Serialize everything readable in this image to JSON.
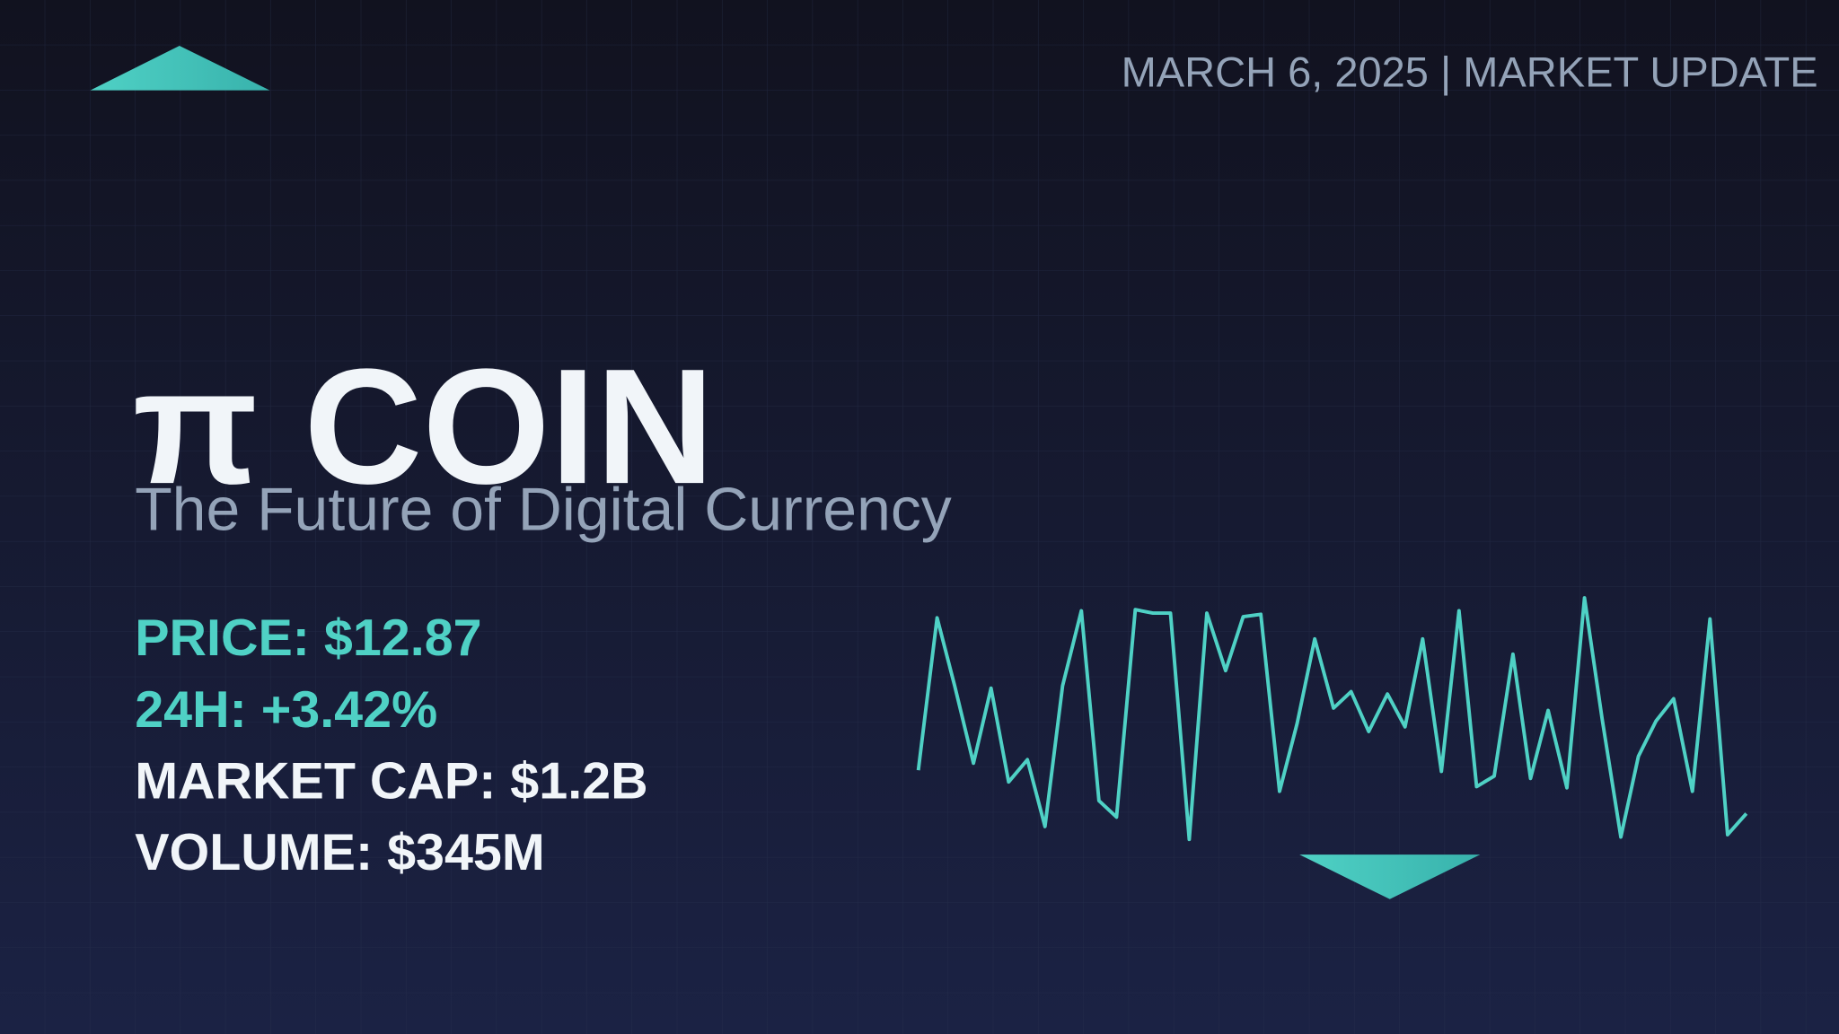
{
  "header": {
    "date_line": "MARCH 6, 2025 | MARKET UPDATE"
  },
  "hero": {
    "title": "π COIN",
    "subtitle": "The Future of Digital Currency"
  },
  "stats": [
    "PRICE: $12.87",
    "24H: +3.42%",
    "MARKET CAP: $1.2B",
    "VOLUME: $345M"
  ]
}
